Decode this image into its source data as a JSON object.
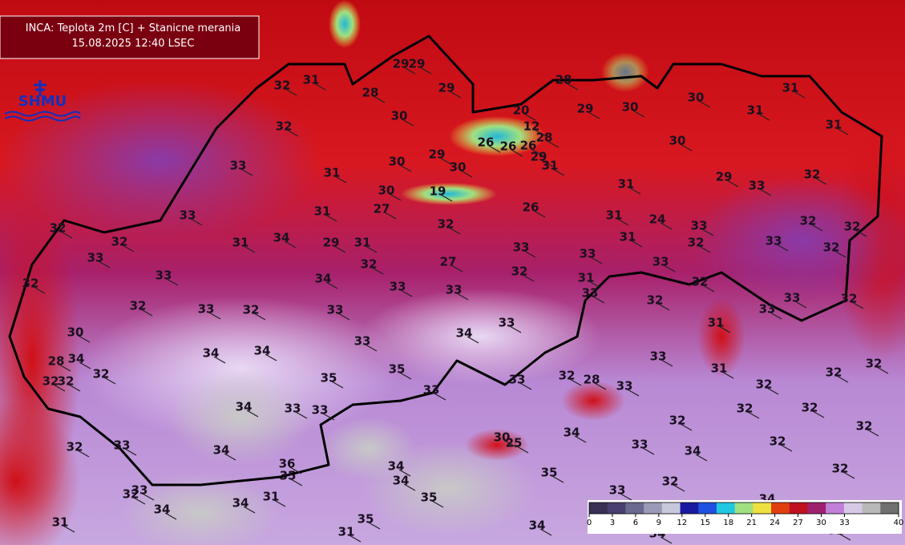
{
  "header": {
    "title": "INCA: Teplota 2m [C] + Stanicne merania",
    "timestamp": "15.08.2025 12:40 LSEC"
  },
  "logo": "SHMU",
  "stations": [
    32,
    31,
    28,
    29,
    29,
    29,
    28,
    20,
    12,
    28,
    26,
    26,
    26,
    29,
    31,
    30,
    29,
    30,
    30,
    31,
    31,
    31,
    30,
    32,
    31,
    33,
    29,
    30,
    30,
    30,
    19,
    27,
    26,
    31,
    29,
    33,
    32,
    31,
    33,
    31,
    24,
    33,
    32,
    32,
    32,
    32,
    31,
    34,
    29,
    31,
    32,
    31,
    32,
    33,
    32,
    33,
    32,
    33,
    27,
    33,
    33,
    33,
    34,
    32,
    31,
    32,
    33,
    33,
    33,
    32,
    32,
    33,
    32,
    33,
    33,
    33,
    32,
    32,
    30,
    34,
    33,
    31,
    33,
    28,
    34,
    34,
    34,
    33,
    32,
    32,
    32,
    32,
    35,
    35,
    32,
    28,
    31,
    32,
    32,
    33,
    33,
    33,
    34,
    33,
    33,
    32,
    32,
    32,
    32,
    30,
    25,
    34,
    33,
    32,
    34,
    33,
    34,
    32,
    36,
    35,
    34,
    34,
    35,
    35,
    32,
    32,
    33,
    32,
    31,
    33,
    34,
    34,
    34,
    31,
    35,
    31,
    34,
    34,
    32
  ],
  "colorbar": {
    "lim": [
      0,
      40
    ],
    "ticks": [
      0,
      3,
      6,
      9,
      12,
      15,
      18,
      21,
      24,
      27,
      30,
      33,
      40
    ],
    "colors": [
      "#3a2f55",
      "#4a4070",
      "#6a6a90",
      "#9a9ab8",
      "#c8c8dc",
      "#1a1aa0",
      "#2050e0",
      "#20c8e0",
      "#a0e080",
      "#f0e040",
      "#e04010",
      "#c01020",
      "#a02070",
      "#c080d8",
      "#d8c8e8",
      "#b8b8b8",
      "#707070"
    ]
  }
}
